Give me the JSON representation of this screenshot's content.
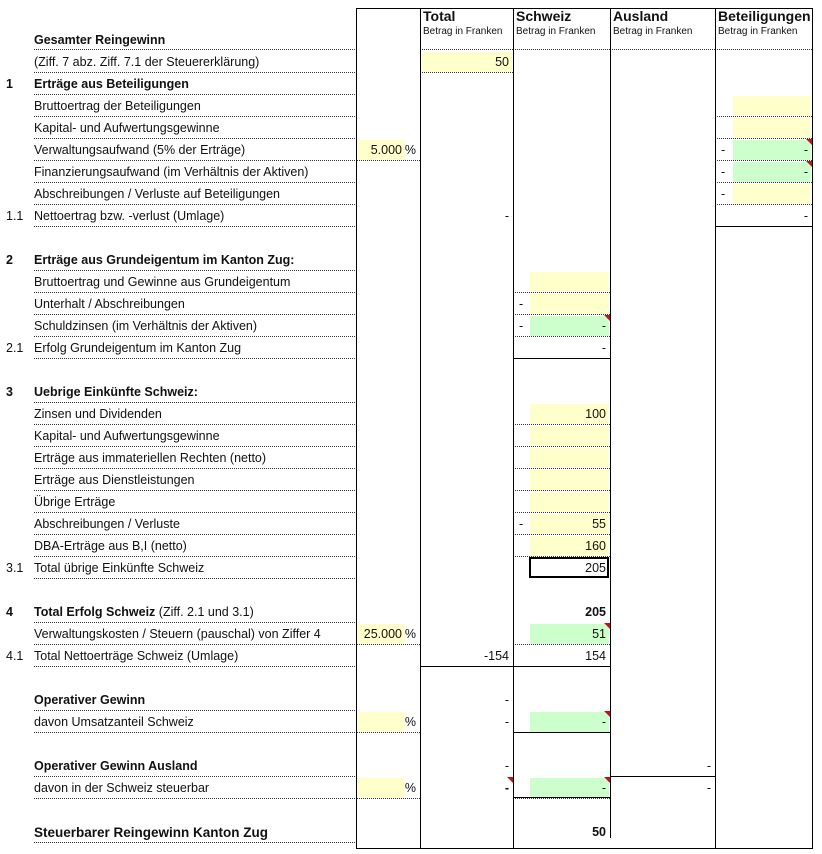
{
  "colors": {
    "yellow": "#ffffcc",
    "green": "#ccffcc",
    "comment": "#c0141c"
  },
  "header": {
    "title": "Gesamter Reingewinn",
    "columns": [
      {
        "key": "total",
        "title": "Total",
        "sub": "Betrag in Franken"
      },
      {
        "key": "schweiz",
        "title": "Schweiz",
        "sub": "Betrag in Franken"
      },
      {
        "key": "ausland",
        "title": "Ausland",
        "sub": "Betrag in Franken"
      },
      {
        "key": "beteil",
        "title": "Beteiligungen",
        "sub": "Betrag in Franken"
      }
    ]
  },
  "rows": [
    {
      "label": "(Ziff. 7 abz. Ziff. 7.1 der Steuererklärung)",
      "total": {
        "v": "50",
        "fill": "yellow"
      }
    },
    {
      "num": "1",
      "label": "Erträge aus Beteiligungen",
      "bold": true
    },
    {
      "label": "Bruttoertrag der Beteiligungen",
      "beteil": {
        "fill": "yellow"
      }
    },
    {
      "label": "Kapital- und Aufwertungsgewinne",
      "beteil": {
        "fill": "yellow"
      }
    },
    {
      "label": "Verwaltungsaufwand (5% der Erträge)",
      "pct": {
        "v": "5.000",
        "fill": "yellow"
      },
      "beteil": {
        "v": "-",
        "pre": "-",
        "fill": "green",
        "comment": true
      }
    },
    {
      "label": "Finanzierungsaufwand (im Verhältnis der Aktiven)",
      "beteil": {
        "v": "-",
        "pre": "-",
        "fill": "green",
        "comment": true
      }
    },
    {
      "label": "Abschreibungen / Verluste auf Beteiligungen",
      "beteil": {
        "pre": "-",
        "fill": "yellow"
      }
    },
    {
      "num": "1.1",
      "label": "Nettoertrag bzw. -verlust (Umlage)",
      "total": {
        "v": "-"
      },
      "beteil": {
        "v": "-"
      }
    },
    {},
    {
      "num": "2",
      "label": "Erträge aus Grundeigentum im Kanton Zug:",
      "bold": true
    },
    {
      "label": "Bruttoertrag und Gewinne aus Grundeigentum",
      "schweiz": {
        "fill": "yellow"
      }
    },
    {
      "label": "Unterhalt / Abschreibungen",
      "schweiz": {
        "pre": "-",
        "fill": "yellow"
      }
    },
    {
      "label": "Schuldzinsen (im Verhältnis der Aktiven)",
      "schweiz": {
        "v": "-",
        "pre": "-",
        "fill": "green",
        "comment": true
      }
    },
    {
      "num": "2.1",
      "label": "Erfolg Grundeigentum im Kanton Zug",
      "schweiz": {
        "v": "-"
      }
    },
    {},
    {
      "num": "3",
      "label": "Uebrige Einkünfte Schweiz:",
      "bold": true
    },
    {
      "label": "Zinsen und Dividenden",
      "schweiz": {
        "v": "100",
        "fill": "yellow"
      }
    },
    {
      "label": "Kapital- und Aufwertungsgewinne",
      "schweiz": {
        "fill": "yellow"
      }
    },
    {
      "label": "Erträge aus immateriellen Rechten (netto)",
      "schweiz": {
        "fill": "yellow"
      }
    },
    {
      "label": "Erträge aus Dienstleistungen",
      "schweiz": {
        "fill": "yellow"
      }
    },
    {
      "label": "Übrige Erträge",
      "schweiz": {
        "fill": "yellow"
      }
    },
    {
      "label": "Abschreibungen / Verluste",
      "schweiz": {
        "v": "55",
        "pre": "-",
        "fill": "yellow"
      }
    },
    {
      "label": "DBA-Erträge aus B,I (netto)",
      "schweiz": {
        "v": "160",
        "fill": "yellow"
      }
    },
    {
      "num": "3.1",
      "label": "Total übrige Einkünfte Schweiz",
      "schweiz": {
        "v": "205",
        "selected": true
      }
    },
    {},
    {
      "num": "4",
      "label": "Total Erfolg Schweiz",
      "label_suffix": " (Ziff. 2.1 und 3.1)",
      "bold": true,
      "schweiz": {
        "v": "205",
        "bold": true
      }
    },
    {
      "label": "Verwaltungskosten / Steuern (pauschal) von Ziffer  4",
      "pct": {
        "v": "25.000",
        "fill": "yellow"
      },
      "schweiz": {
        "v": "51",
        "fill": "green",
        "comment": true
      }
    },
    {
      "num": "4.1",
      "label": "Total Nettoerträge Schweiz (Umlage)",
      "total": {
        "v": "-154"
      },
      "schweiz": {
        "v": "154"
      }
    },
    {},
    {
      "label": "Operativer Gewinn",
      "bold": true,
      "total": {
        "v": "-"
      }
    },
    {
      "label": "davon Umsatzanteil Schweiz",
      "pct": {
        "v": "",
        "fill": "yellow"
      },
      "total": {
        "v": "-"
      },
      "schweiz": {
        "v": "-",
        "fill": "green",
        "comment": true
      }
    },
    {},
    {
      "label": "Operativer Gewinn Ausland",
      "bold": true,
      "total": {
        "v": "-"
      },
      "ausland": {
        "v": "-"
      }
    },
    {
      "label": "davon in der Schweiz steuerbar",
      "pct": {
        "v": "",
        "fill": "yellow"
      },
      "total": {
        "v": "-",
        "bold": true,
        "comment": true
      },
      "schweiz": {
        "v": "-",
        "fill": "green",
        "comment": true
      },
      "ausland": {
        "v": "-"
      }
    },
    {},
    {
      "label": "Steuerbarer Reingewinn Kanton Zug",
      "bold": true,
      "schweiz": {
        "v": "50",
        "bold": true
      }
    }
  ],
  "pct_unit": "%"
}
